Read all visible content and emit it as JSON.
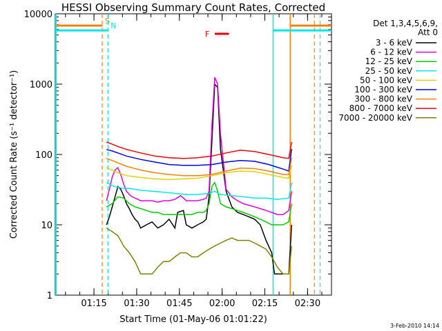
{
  "chart_data": {
    "type": "line",
    "title": "HESSI Observing Summary Count Rates, Corrected",
    "xlabel": "Start Time (01-May-06 01:01:22)",
    "ylabel": "Corrected Count Rate (s⁻¹ detector⁻¹)",
    "x_unit": "minutes after 01:01:22",
    "x_range": [
      0,
      97
    ],
    "y_range": [
      1,
      10000
    ],
    "yscale": "log",
    "x_ticks": [
      {
        "x": 13.6,
        "label": "01:15"
      },
      {
        "x": 28.6,
        "label": "01:30"
      },
      {
        "x": 43.6,
        "label": "01:45"
      },
      {
        "x": 58.6,
        "label": "02:00"
      },
      {
        "x": 73.6,
        "label": "02:15"
      },
      {
        "x": 88.6,
        "label": "02:30"
      }
    ],
    "y_ticks": [
      {
        "y": 1,
        "label": "1"
      },
      {
        "y": 10,
        "label": "10"
      },
      {
        "y": 100,
        "label": "100"
      },
      {
        "y": 1000,
        "label": "1000"
      },
      {
        "y": 10000,
        "label": "10000"
      }
    ],
    "legend": {
      "title1": "Det 1,3,4,5,6,9,",
      "title2": "Att 0",
      "position": "right"
    },
    "series": [
      {
        "name": "3 - 6 keV",
        "color": "#000000",
        "x": [
          18,
          19,
          20,
          21,
          22,
          23,
          24,
          25,
          26,
          27,
          28,
          29,
          30,
          32,
          34,
          36,
          38,
          40,
          42,
          43,
          45,
          46,
          48,
          50,
          52,
          53,
          54,
          55,
          56,
          57,
          58,
          60,
          62,
          64,
          66,
          68,
          70,
          72,
          74,
          76,
          77,
          78,
          79,
          80,
          81,
          82,
          83
        ],
        "y": [
          10,
          13,
          18,
          25,
          35,
          32,
          26,
          20,
          17,
          14,
          12,
          11,
          9,
          10,
          11,
          9,
          10,
          12,
          9,
          15,
          16,
          10,
          9,
          10,
          11,
          12,
          25,
          150,
          1000,
          900,
          120,
          30,
          18,
          15,
          14,
          13,
          12,
          10,
          6,
          4,
          2,
          2,
          2,
          2,
          2,
          2,
          10
        ]
      },
      {
        "name": "6 - 12 keV",
        "color": "#e000e0",
        "x": [
          18,
          19,
          20,
          21,
          22,
          23,
          24,
          25,
          26,
          27,
          28,
          29,
          30,
          32,
          34,
          36,
          38,
          40,
          42,
          44,
          45,
          46,
          48,
          50,
          52,
          53,
          54,
          55,
          56,
          57,
          58,
          60,
          62,
          64,
          66,
          68,
          70,
          72,
          74,
          76,
          78,
          80,
          82,
          83
        ],
        "y": [
          22,
          32,
          48,
          60,
          65,
          52,
          38,
          30,
          27,
          25,
          24,
          23,
          22,
          22,
          22,
          21,
          22,
          22,
          23,
          26,
          24,
          22,
          22,
          22,
          23,
          24,
          30,
          250,
          1250,
          1000,
          200,
          32,
          25,
          22,
          20,
          19,
          18,
          17,
          16,
          15,
          14,
          14,
          16,
          30
        ]
      },
      {
        "name": "12 - 25 keV",
        "color": "#00cc00",
        "x": [
          18,
          20,
          22,
          24,
          26,
          28,
          30,
          32,
          34,
          36,
          38,
          40,
          42,
          44,
          46,
          48,
          50,
          52,
          53,
          54,
          55,
          56,
          57,
          58,
          60,
          62,
          64,
          66,
          68,
          70,
          72,
          74,
          76,
          78,
          80,
          82,
          83
        ],
        "y": [
          18,
          20,
          25,
          24,
          20,
          18,
          17,
          16,
          15,
          15,
          14,
          14,
          14,
          14,
          14,
          14,
          15,
          15,
          16,
          20,
          35,
          40,
          30,
          20,
          18,
          17,
          16,
          15,
          14,
          13,
          12,
          11,
          10,
          10,
          10,
          11,
          20
        ]
      },
      {
        "name": "25 - 50 keV",
        "color": "#00e8e8",
        "x": [
          18,
          20,
          22,
          24,
          26,
          28,
          30,
          34,
          38,
          42,
          46,
          50,
          54,
          56,
          58,
          62,
          66,
          70,
          74,
          78,
          82,
          83
        ],
        "y": [
          40,
          36,
          34,
          33,
          33,
          32,
          31,
          30,
          29,
          28,
          27,
          27,
          28,
          30,
          27,
          26,
          25,
          24,
          24,
          23,
          24,
          40
        ]
      },
      {
        "name": "50 - 100 keV",
        "color": "#e0d000",
        "x": [
          18,
          20,
          22,
          25,
          30,
          35,
          40,
          45,
          50,
          55,
          60,
          65,
          70,
          75,
          80,
          82,
          83
        ],
        "y": [
          65,
          60,
          55,
          50,
          47,
          45,
          44,
          45,
          46,
          50,
          55,
          58,
          57,
          52,
          47,
          46,
          70
        ]
      },
      {
        "name": "100 - 300 keV",
        "color": "#0000e0",
        "x": [
          18,
          20,
          22,
          25,
          30,
          35,
          40,
          45,
          50,
          55,
          60,
          65,
          70,
          75,
          80,
          82,
          83
        ],
        "y": [
          118,
          112,
          105,
          95,
          85,
          78,
          72,
          70,
          70,
          72,
          78,
          82,
          80,
          72,
          62,
          58,
          120
        ]
      },
      {
        "name": "300 - 800 keV",
        "color": "#ff7f00",
        "x": [
          18,
          20,
          22,
          25,
          30,
          35,
          40,
          45,
          50,
          55,
          60,
          65,
          70,
          75,
          80,
          82,
          83
        ],
        "y": [
          88,
          82,
          76,
          68,
          60,
          55,
          52,
          50,
          50,
          52,
          58,
          64,
          63,
          58,
          52,
          52,
          90
        ]
      },
      {
        "name": "800 - 7000 keV",
        "color": "#ee0000",
        "x": [
          18,
          20,
          22,
          25,
          30,
          35,
          40,
          45,
          50,
          55,
          60,
          65,
          70,
          75,
          80,
          82,
          83
        ],
        "y": [
          150,
          140,
          130,
          118,
          105,
          95,
          90,
          88,
          90,
          95,
          105,
          115,
          110,
          100,
          90,
          88,
          150
        ]
      },
      {
        "name": "7000 - 20000 keV",
        "color": "#808000",
        "x": [
          18,
          20,
          22,
          24,
          26,
          28,
          30,
          32,
          34,
          36,
          38,
          40,
          42,
          44,
          46,
          48,
          50,
          52,
          54,
          56,
          58,
          60,
          62,
          64,
          66,
          68,
          70,
          72,
          74,
          76,
          78,
          80,
          82,
          83
        ],
        "y": [
          9,
          8,
          7,
          5,
          4,
          3,
          2,
          2,
          2,
          2.5,
          3,
          3,
          3.5,
          4,
          4,
          3.5,
          3.5,
          4,
          4.5,
          5,
          5.5,
          6,
          6.5,
          6,
          6,
          6,
          5.5,
          5,
          4.5,
          3.5,
          2.5,
          2,
          2,
          5
        ]
      }
    ],
    "annotations": [
      {
        "label": "S",
        "color": "#ff7f00",
        "dashed_x": [
          16.5,
          91
        ],
        "solid_x": [
          82.5
        ],
        "level": 6800
      },
      {
        "label": "N",
        "color": "#00e8e8",
        "dashed_x": [
          18.5,
          93
        ],
        "solid_x": [
          76.5
        ],
        "solid_x_left": [
          0
        ],
        "level": 5800
      },
      {
        "label": "F",
        "color": "#ee0000",
        "range": [
          56,
          61
        ],
        "level": 5200
      }
    ],
    "grid": false
  },
  "footer": {
    "date": "3-Feb-2010 14:14"
  }
}
